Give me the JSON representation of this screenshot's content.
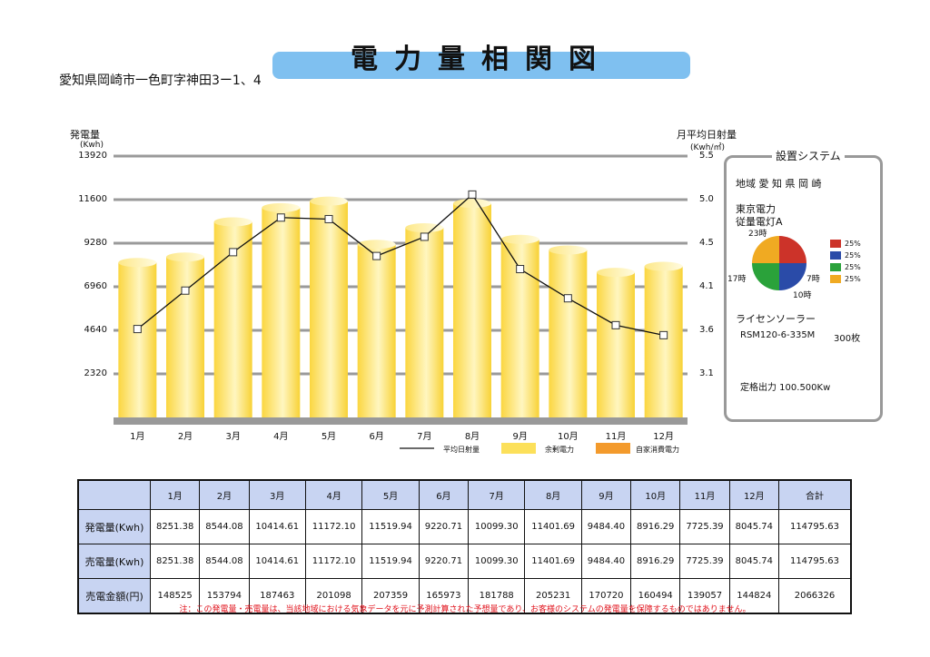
{
  "title": "電力量相関図",
  "address": "愛知県岡崎市一色町字神田3ー1、4",
  "chart_data": {
    "type": "bar",
    "categories": [
      "1月",
      "2月",
      "3月",
      "4月",
      "5月",
      "6月",
      "7月",
      "8月",
      "9月",
      "10月",
      "11月",
      "12月"
    ],
    "left_axis": {
      "label": "発電量",
      "unit": "(Kwh)",
      "ticks": [
        "13920",
        "11600",
        "9280",
        "6960",
        "4640",
        "2320"
      ],
      "range": [
        0,
        13920
      ]
    },
    "right_axis": {
      "label": "月平均日射量",
      "unit": "(Kwh/㎡)",
      "ticks": [
        "5.5",
        "5.0",
        "4.5",
        "4.1",
        "3.6",
        "3.1"
      ],
      "range": [
        2.1,
        5.5
      ]
    },
    "series": [
      {
        "name": "余剰電力",
        "type": "bar",
        "color": "#fce05a",
        "values": [
          8251.38,
          8544.08,
          10414.61,
          11172.1,
          11519.94,
          9220.71,
          10099.3,
          11401.69,
          9484.4,
          8916.29,
          7725.39,
          8045.74
        ]
      },
      {
        "name": "平均日射量",
        "type": "line",
        "color": "#111111",
        "values": [
          3.25,
          3.75,
          4.25,
          4.7,
          4.68,
          4.2,
          4.45,
          5.0,
          4.03,
          3.65,
          3.3,
          3.17
        ]
      }
    ],
    "legend": [
      {
        "name": "平均日射量",
        "kind": "line",
        "color": "#111111"
      },
      {
        "name": "余剰電力",
        "kind": "bar",
        "color": "#fce05a"
      },
      {
        "name": "自家消費電力",
        "kind": "bar",
        "color": "#f39a2c"
      }
    ],
    "grid": true
  },
  "system": {
    "title": "設置システム",
    "region": "地域  愛 知 県 岡 崎",
    "utility": "東京電力",
    "plan": "従量電灯A",
    "pie": {
      "slices": [
        {
          "percent": 25,
          "color": "#cc3329"
        },
        {
          "percent": 25,
          "color": "#2a4ba8"
        },
        {
          "percent": 25,
          "color": "#2aa23a"
        },
        {
          "percent": 25,
          "color": "#f0aa22"
        }
      ],
      "labels": [
        "23時",
        "7時",
        "10時",
        "17時"
      ],
      "percent_text": "25%"
    },
    "license_label": "ライセンソーラー",
    "module": "RSM120-6-335M",
    "count": "300枚",
    "rated_output": "定格出力  100.500Kw"
  },
  "table": {
    "headers": [
      "1月",
      "2月",
      "3月",
      "4月",
      "5月",
      "6月",
      "7月",
      "8月",
      "9月",
      "10月",
      "11月",
      "12月",
      "合計"
    ],
    "rows": [
      {
        "label": "発電量(Kwh)",
        "cells": [
          "8251.38",
          "8544.08",
          "10414.61",
          "11172.10",
          "11519.94",
          "9220.71",
          "10099.30",
          "11401.69",
          "9484.40",
          "8916.29",
          "7725.39",
          "8045.74",
          "114795.63"
        ]
      },
      {
        "label": "売電量(Kwh)",
        "cells": [
          "8251.38",
          "8544.08",
          "10414.61",
          "11172.10",
          "11519.94",
          "9220.71",
          "10099.30",
          "11401.69",
          "9484.40",
          "8916.29",
          "7725.39",
          "8045.74",
          "114795.63"
        ]
      },
      {
        "label": "売電金額(円)",
        "cells": [
          "148525",
          "153794",
          "187463",
          "201098",
          "207359",
          "165973",
          "181788",
          "205231",
          "170720",
          "160494",
          "139057",
          "144824",
          "2066326"
        ]
      }
    ]
  },
  "note": "注：この発電量・売電量は、当該地域における気象データを元に予測計算された予想量であり、お客様のシステムの発電量を保障するものではありません。"
}
